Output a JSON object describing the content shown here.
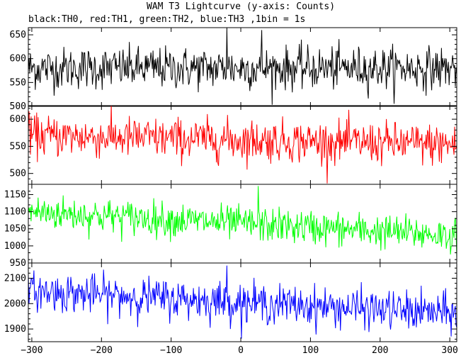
{
  "title": "WAM T3 Lightcurve (y-axis: Counts)",
  "subtitle": "black:TH0, red:TH1, green:TH2, blue:TH3 ,1bin = 1s",
  "chart_data": {
    "type": "line",
    "title": "WAM T3 Lightcurve (y-axis: Counts)",
    "subtitle": "black:TH0, red:TH1, green:TH2, blue:TH3 ,1bin = 1s",
    "x_range": [
      -305,
      310
    ],
    "x_ticks": [
      -300,
      -200,
      -100,
      0,
      100,
      200,
      300
    ],
    "x_tick_labels": [
      "−300",
      "−200",
      "−100",
      "0",
      "100",
      "200",
      "300"
    ],
    "panels": [
      {
        "name": "TH0",
        "color": "#000000",
        "ylim": [
          500,
          665
        ],
        "y_ticks": [
          500,
          550,
          600,
          650
        ],
        "y_tick_labels": [
          "500",
          "550",
          "600",
          "650"
        ],
        "mean_start": 580,
        "mean_end": 580,
        "noise_sd": 22,
        "peaks": [
          {
            "x": -20,
            "value": 665
          },
          {
            "x": 30,
            "value": 660
          }
        ]
      },
      {
        "name": "TH1",
        "color": "#ff0000",
        "ylim": [
          480,
          625
        ],
        "y_ticks": [
          500,
          550,
          600
        ],
        "y_tick_labels": [
          "500",
          "550",
          "600"
        ],
        "mean_start": 570,
        "mean_end": 553,
        "noise_sd": 19,
        "peaks": []
      },
      {
        "name": "TH2",
        "color": "#00ff00",
        "ylim": [
          950,
          1180
        ],
        "y_ticks": [
          950,
          1000,
          1050,
          1100,
          1150
        ],
        "y_tick_labels": [
          "950",
          "1000",
          "1050",
          "1100",
          "1150"
        ],
        "mean_start": 1100,
        "mean_end": 1030,
        "noise_sd": 25,
        "peaks": [
          {
            "x": 25,
            "value": 1175
          }
        ]
      },
      {
        "name": "TH3",
        "color": "#0000ff",
        "ylim": [
          1850,
          2160
        ],
        "y_ticks": [
          1900,
          2000,
          2100
        ],
        "y_tick_labels": [
          "1900",
          "2000",
          "2100"
        ],
        "mean_start": 2050,
        "mean_end": 1960,
        "noise_sd": 38,
        "peaks": [
          {
            "x": -20,
            "value": 2150
          }
        ]
      }
    ]
  }
}
